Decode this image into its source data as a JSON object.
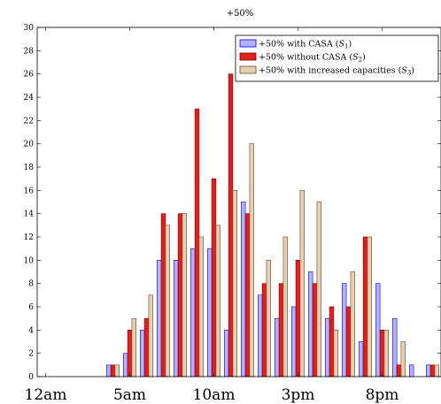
{
  "chart_data": {
    "type": "bar",
    "title": "+50%",
    "x": [
      0,
      1,
      2,
      3,
      4,
      5,
      6,
      7,
      8,
      9,
      10,
      11,
      12,
      13,
      14,
      15,
      16,
      17,
      18,
      19,
      20,
      21,
      22,
      23
    ],
    "xticks": [
      0,
      5,
      10,
      15,
      20
    ],
    "xtick_labels": [
      "12am",
      "5am",
      "10am",
      "3pm",
      "8pm"
    ],
    "xlim": [
      -0.5,
      23.5
    ],
    "ylim": [
      0,
      30
    ],
    "yticks": [
      0,
      2,
      4,
      6,
      8,
      10,
      12,
      14,
      16,
      18,
      20,
      22,
      24,
      26,
      28,
      30
    ],
    "xlabel": "",
    "ylabel": "",
    "grid": false,
    "legend_position": "top-right",
    "series": [
      {
        "name": "+50% with CASA (S1)",
        "legend_text": "+50% with CASA (",
        "legend_sym": "S",
        "legend_sub": "1",
        "legend_close": ")",
        "fill": "#b3b3ff",
        "stroke": "#0000ff",
        "values": [
          0,
          0,
          0,
          0,
          1,
          2,
          4,
          10,
          10,
          11,
          11,
          4,
          15,
          7,
          5,
          6,
          9,
          5,
          8,
          3,
          8,
          5,
          1,
          1
        ]
      },
      {
        "name": "+50% without CASA (S2)",
        "legend_text": "+50% without CASA (",
        "legend_sym": "S",
        "legend_sub": "2",
        "legend_close": ")",
        "fill": "#e02020",
        "stroke": "#800000",
        "values": [
          0,
          0,
          0,
          0,
          1,
          4,
          5,
          14,
          14,
          23,
          17,
          26,
          14,
          8,
          8,
          10,
          8,
          6,
          6,
          12,
          4,
          1,
          0,
          1
        ]
      },
      {
        "name": "+50% with increased capacities (S3)",
        "legend_text": "+50% with increased capacities (",
        "legend_sym": "S",
        "legend_sub": "3",
        "legend_close": ")",
        "fill": "#e6cfb3",
        "stroke": "#6b4a2a",
        "values": [
          0,
          0,
          0,
          0,
          1,
          5,
          7,
          13,
          14,
          12,
          13,
          16,
          20,
          10,
          12,
          16,
          15,
          4,
          9,
          12,
          4,
          3,
          0,
          1
        ]
      }
    ]
  }
}
